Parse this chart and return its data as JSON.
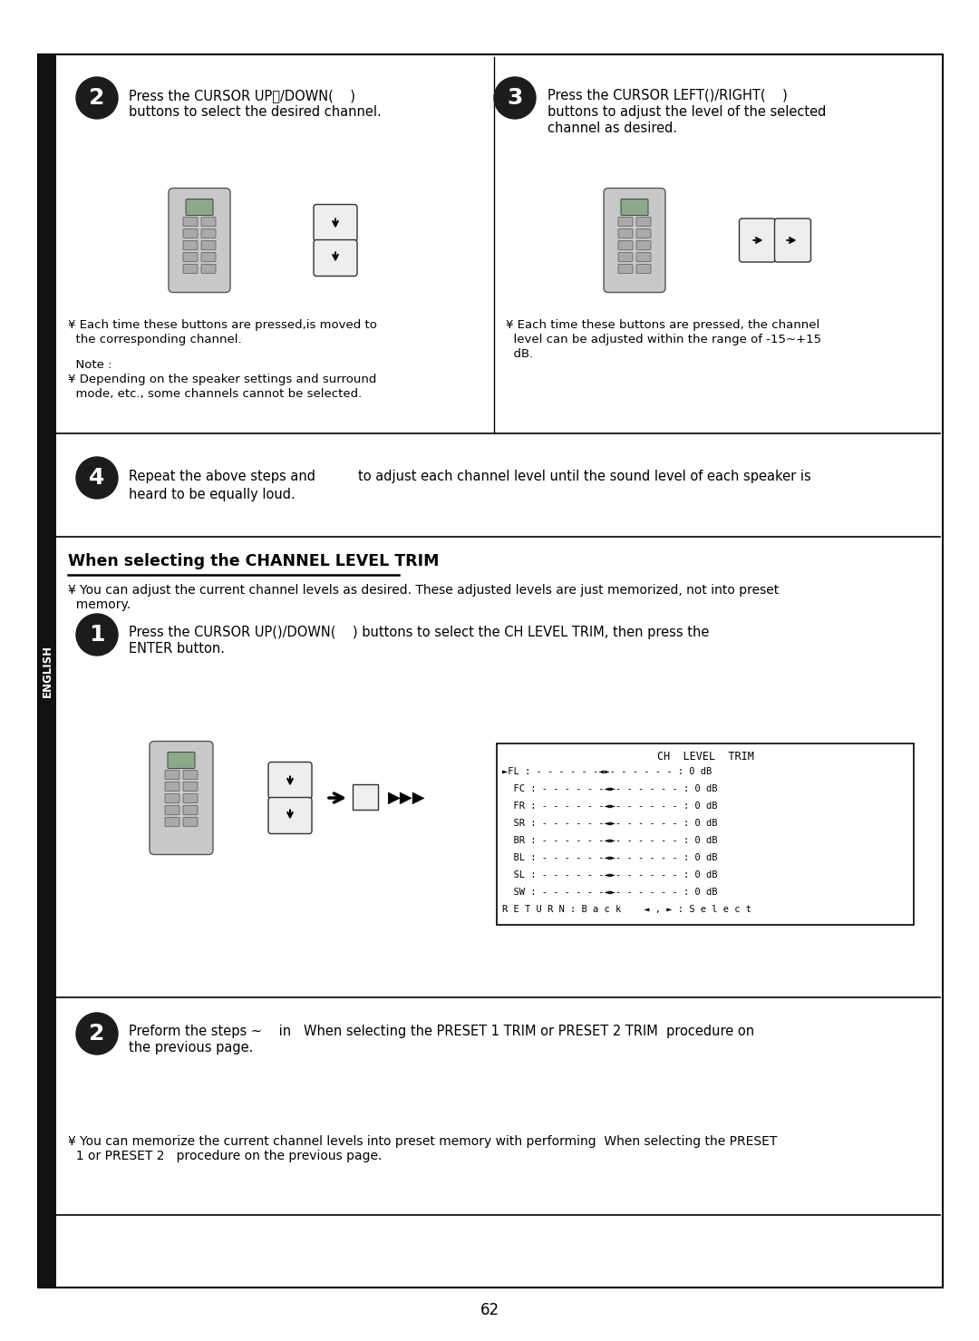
{
  "page_number": "62",
  "bg": "#ffffff",
  "s2_line1": "Press the CURSOR UP\u0000/DOWN(    )",
  "s2_line2": "buttons to select the desired channel.",
  "s2_note1a": "¥ Each time these buttons are pressed,is moved to",
  "s2_note1b": "  the corresponding channel.",
  "s2_note2a": "  Note :",
  "s2_note2b": "¥ Depending on the speaker settings and surround",
  "s2_note2c": "  mode, etc., some channels cannot be selected.",
  "s3_line1": "Press the CURSOR LEFT()/RIGHT(    )",
  "s3_line2": "buttons to adjust the level of the selected",
  "s3_line3": "channel as desired.",
  "s3_note1": "¥ Each time these buttons are pressed, the channel",
  "s3_note2": "  level can be adjusted within the range of -15~+15",
  "s3_note3": "  dB.",
  "s4_line1": "Repeat the above steps and",
  "s4_line2": "to adjust each channel level until the sound level of each speaker is",
  "s4_line3": "heard to be equally loud.",
  "heading": "When selecting the CHANNEL LEVEL TRIM",
  "hnote1": "¥ You can adjust the current channel levels as desired. These adjusted levels are just memorized, not into preset",
  "hnote2": "  memory.",
  "s1_line1": "Press the CURSOR UP()/DOWN(    ) buttons to select the CH LEVEL TRIM, then press the",
  "s1_line2": "ENTER button.",
  "ch_title": "CH  LEVEL  TRIM",
  "ch_r1": "►FL : - - - - - -◄►- - - - - - : 0 dB",
  "ch_r2": "  FC : - - - - - -◄►- - - - - - : 0 dB",
  "ch_r3": "  FR : - - - - - -◄►- - - - - - : 0 dB",
  "ch_r4": "  SR : - - - - - -◄►- - - - - - : 0 dB",
  "ch_r5": "  BR : - - - - - -◄►- - - - - - : 0 dB",
  "ch_r6": "  BL : - - - - - -◄►- - - - - - : 0 dB",
  "ch_r7": "  SL : - - - - - -◄►- - - - - - : 0 dB",
  "ch_r8": "  SW : - - - - - -◄►- - - - - - : 0 dB",
  "ch_r9": "R E T U R N : B a c k    ◄ , ► : S e l e c t",
  "b2_line1": "Preform the steps ~    in   When selecting the PRESET 1 TRIM or PRESET 2 TRIM  procedure on",
  "b2_line2": "the previous page.",
  "bn1": "¥ You can memorize the current channel levels into preset memory with performing  When selecting the PRESET",
  "bn2": "  1 or PRESET 2   procedure on the previous page."
}
